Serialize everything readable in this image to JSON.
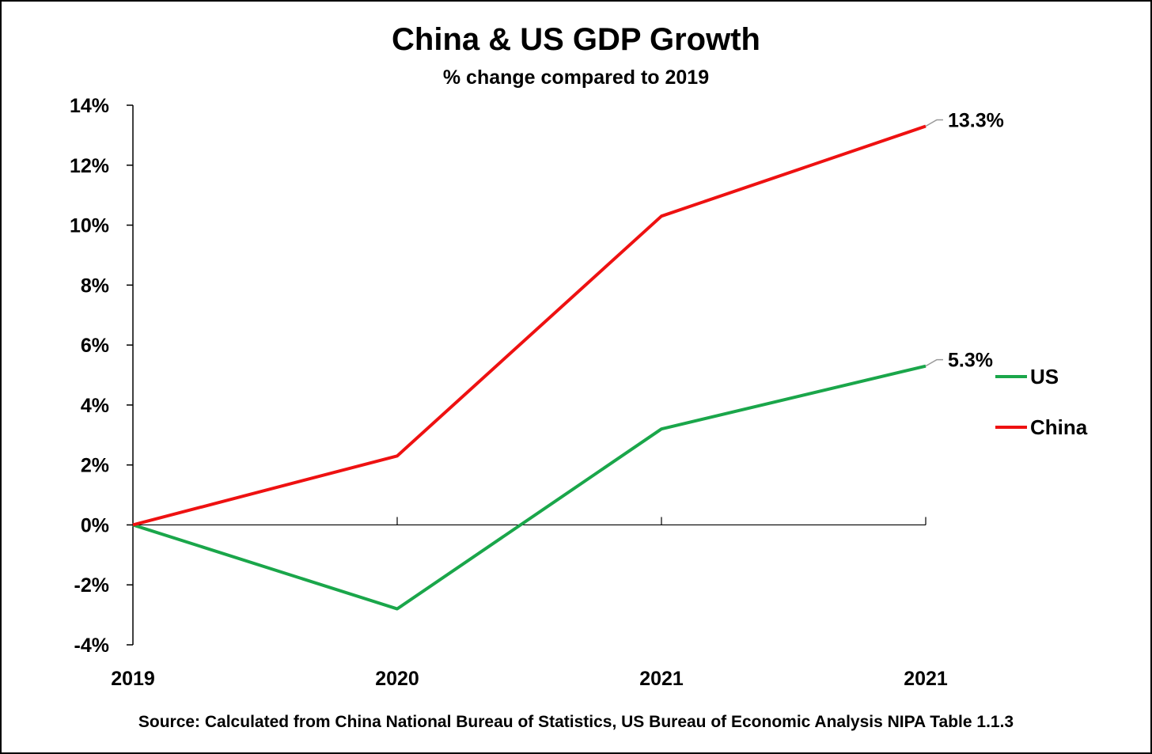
{
  "chart_data": {
    "type": "line",
    "title": "China & US GDP Growth",
    "subtitle": "% change compared to 2019",
    "source": "Source: Calculated from China National Bureau of Statistics, US Bureau of Economic Analysis NIPA Table 1.1.3",
    "categories": [
      "2019",
      "2020",
      "2021",
      "2021"
    ],
    "y_tick_labels": [
      "14%",
      "12%",
      "10%",
      "8%",
      "6%",
      "4%",
      "2%",
      "0%",
      "-2%",
      "-4%"
    ],
    "y_ticks": [
      14,
      12,
      10,
      8,
      6,
      4,
      2,
      0,
      -2,
      -4
    ],
    "ylim": [
      -4,
      14
    ],
    "grid": false,
    "legend_position": "right",
    "series": [
      {
        "name": "US",
        "values": [
          0,
          -2.8,
          3.2,
          5.3
        ],
        "color": "#1aa64a",
        "end_label": "5.3%"
      },
      {
        "name": "China",
        "values": [
          0,
          2.3,
          10.3,
          13.3
        ],
        "color": "#ee1111",
        "end_label": "13.3%"
      }
    ]
  }
}
